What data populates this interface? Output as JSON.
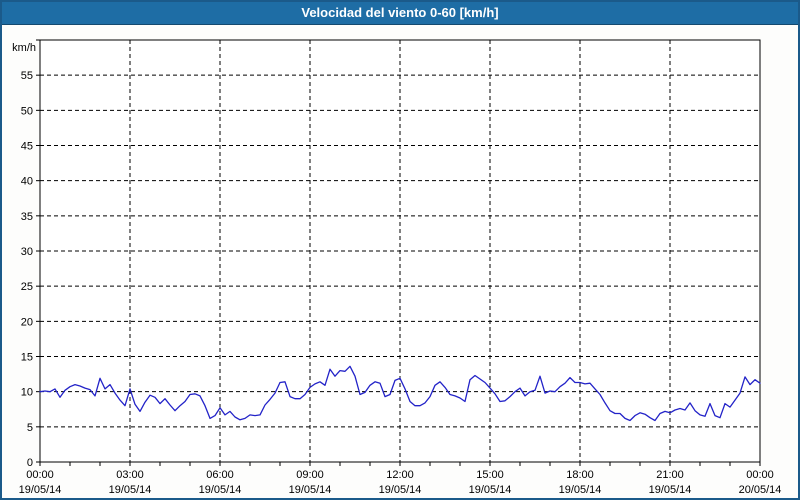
{
  "window": {
    "title": "Velocidad del viento 0-60 [km/h]"
  },
  "colors": {
    "titlebar_bg": "#1e6da5",
    "titlebar_text": "#ffffff",
    "window_border": "#1b5a8a",
    "content_bg": "#fdfdfc",
    "plot_bg": "#ffffff",
    "frame": "#000000",
    "grid": "#000000",
    "axis_text": "#000000",
    "series_line": "#2323c8"
  },
  "chart_data": {
    "type": "line",
    "title": "Velocidad del viento 0-60 [km/h]",
    "ylabel": "km/h",
    "xlabel": "",
    "ylim": [
      0,
      60
    ],
    "ytick_step": 5,
    "ytick_labels": [
      "0",
      "5",
      "10",
      "15",
      "20",
      "25",
      "30",
      "35",
      "40",
      "45",
      "50",
      "55"
    ],
    "grid": "dashed",
    "legend_position": "none",
    "x_axis": {
      "range_hours": 24,
      "major_tick_interval_hours": 3,
      "minor_tick_interval_hours": 1,
      "ticks": [
        {
          "time": "00:00",
          "date": "19/05/14",
          "hour": 0
        },
        {
          "time": "03:00",
          "date": "19/05/14",
          "hour": 3
        },
        {
          "time": "06:00",
          "date": "19/05/14",
          "hour": 6
        },
        {
          "time": "09:00",
          "date": "19/05/14",
          "hour": 9
        },
        {
          "time": "12:00",
          "date": "19/05/14",
          "hour": 12
        },
        {
          "time": "15:00",
          "date": "19/05/14",
          "hour": 15
        },
        {
          "time": "18:00",
          "date": "19/05/14",
          "hour": 18
        },
        {
          "time": "21:00",
          "date": "19/05/14",
          "hour": 21
        },
        {
          "time": "00:00",
          "date": "20/05/14",
          "hour": 24
        }
      ]
    },
    "series": [
      {
        "name": "Velocidad del viento",
        "color": "#2323c8",
        "start_time": "00:00",
        "interval_minutes": 10,
        "values": [
          10.0,
          10.1,
          10.0,
          10.4,
          9.2,
          10.2,
          10.7,
          11.0,
          10.8,
          10.5,
          10.3,
          9.4,
          11.9,
          10.4,
          11.0,
          9.8,
          8.8,
          8.0,
          10.4,
          8.2,
          7.2,
          8.5,
          9.5,
          9.2,
          8.3,
          9.0,
          8.1,
          7.3,
          8.0,
          8.6,
          9.6,
          9.7,
          9.4,
          8.0,
          6.2,
          6.6,
          7.7,
          6.7,
          7.2,
          6.4,
          6.0,
          6.2,
          6.7,
          6.6,
          6.7,
          8.1,
          8.9,
          9.8,
          11.3,
          11.4,
          9.3,
          9.0,
          9.0,
          9.6,
          10.6,
          11.1,
          11.4,
          10.9,
          13.2,
          12.2,
          13.0,
          12.9,
          13.6,
          12.2,
          9.6,
          9.9,
          10.9,
          11.4,
          11.2,
          9.3,
          9.6,
          11.6,
          11.9,
          10.4,
          8.6,
          8.0,
          8.0,
          8.4,
          9.3,
          10.9,
          11.4,
          10.6,
          9.6,
          9.4,
          9.1,
          8.6,
          11.7,
          12.3,
          11.8,
          11.3,
          10.5,
          9.7,
          8.6,
          8.7,
          9.3,
          10.0,
          10.5,
          9.4,
          10.0,
          10.2,
          12.2,
          9.8,
          10.1,
          10.0,
          10.7,
          11.2,
          12.0,
          11.3,
          11.3,
          11.1,
          11.2,
          10.4,
          9.6,
          8.4,
          7.3,
          6.9,
          6.9,
          6.2,
          5.9,
          6.6,
          7.0,
          6.8,
          6.3,
          5.9,
          6.9,
          7.2,
          7.0,
          7.4,
          7.6,
          7.4,
          8.4,
          7.3,
          6.7,
          6.5,
          8.3,
          6.6,
          6.3,
          8.3,
          7.8,
          8.8,
          9.8,
          12.1,
          11.0,
          11.7,
          11.2
        ]
      }
    ]
  }
}
